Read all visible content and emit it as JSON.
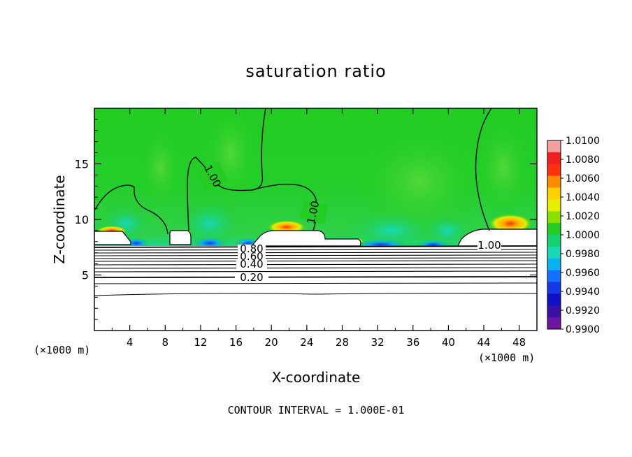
{
  "chart_data": {
    "type": "heatmap",
    "title": "saturation ratio",
    "xlabel": "X-coordinate",
    "ylabel": "Z-coordinate",
    "x_unit_note": "(×1000 m)",
    "x_unit_note_right": "(×1000 m)",
    "xlim": [
      0,
      50
    ],
    "ylim": [
      0,
      20
    ],
    "x_ticks": [
      4,
      8,
      12,
      16,
      20,
      24,
      28,
      32,
      36,
      40,
      44,
      48
    ],
    "y_ticks": [
      5,
      10,
      15
    ],
    "colorbar": {
      "labels": [
        "1.0100",
        "1.0080",
        "1.0060",
        "1.0040",
        "1.0020",
        "1.0000",
        "0.9980",
        "0.9960",
        "0.9940",
        "0.9920",
        "0.9900"
      ],
      "colors": [
        "#f4a0a0",
        "#ee2020",
        "#fe3010",
        "#ff8a00",
        "#ffd000",
        "#e6ee00",
        "#8ce000",
        "#22cc22",
        "#14d070",
        "#18d8b8",
        "#0ab0f0",
        "#1470ff",
        "#1438e6",
        "#1010c8",
        "#3c10a8",
        "#6a14a0"
      ]
    },
    "contour_labels": [
      "1.00",
      "1.00",
      "1.00",
      "0.80",
      "0.60",
      "0.40",
      "0.20"
    ],
    "contour_levels": [
      1.0,
      0.8,
      0.6,
      0.4,
      0.2
    ],
    "footer": "CONTOUR INTERVAL = 1.000E-01"
  }
}
